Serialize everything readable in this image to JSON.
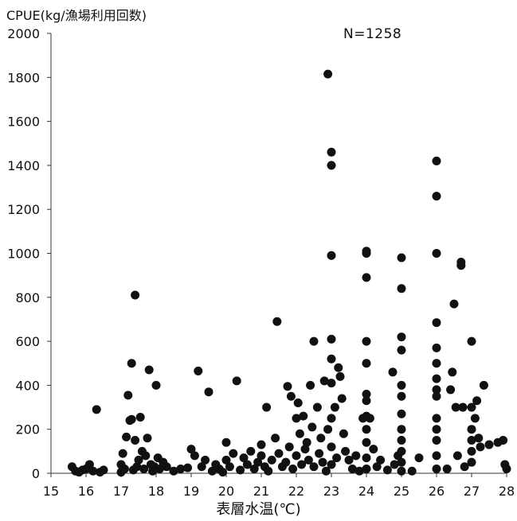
{
  "chart_data": {
    "type": "scatter",
    "title": "",
    "ylabel": "CPUE(kg/漁場利用回数)",
    "xlabel": "表層水温(℃)",
    "annotation": "N=1258",
    "xlim": [
      15,
      28
    ],
    "ylim": [
      0,
      2000
    ],
    "xticks": [
      "15",
      "16",
      "17",
      "18",
      "19",
      "20",
      "21",
      "22",
      "23",
      "24",
      "25",
      "26",
      "27",
      "28"
    ],
    "yticks": [
      "0",
      "200",
      "400",
      "600",
      "800",
      "1000",
      "1200",
      "1400",
      "1600",
      "1800",
      "2000"
    ],
    "grid": false,
    "marker_color": "#111111",
    "series": [
      {
        "points": [
          [
            15.6,
            30
          ],
          [
            15.7,
            10
          ],
          [
            15.8,
            5
          ],
          [
            15.9,
            15
          ],
          [
            16.0,
            20
          ],
          [
            16.1,
            40
          ],
          [
            16.2,
            10
          ],
          [
            16.3,
            290
          ],
          [
            16.4,
            5
          ],
          [
            16.5,
            15
          ],
          [
            17.0,
            5
          ],
          [
            17.0,
            40
          ],
          [
            17.05,
            90
          ],
          [
            17.1,
            20
          ],
          [
            17.15,
            165
          ],
          [
            17.2,
            355
          ],
          [
            17.25,
            240
          ],
          [
            17.3,
            500
          ],
          [
            17.3,
            245
          ],
          [
            17.35,
            15
          ],
          [
            17.4,
            810
          ],
          [
            17.4,
            150
          ],
          [
            17.45,
            30
          ],
          [
            17.5,
            60
          ],
          [
            17.55,
            255
          ],
          [
            17.6,
            100
          ],
          [
            17.65,
            20
          ],
          [
            17.7,
            80
          ],
          [
            17.75,
            160
          ],
          [
            17.8,
            470
          ],
          [
            17.85,
            40
          ],
          [
            17.9,
            10
          ],
          [
            17.95,
            30
          ],
          [
            18.0,
            400
          ],
          [
            18.05,
            70
          ],
          [
            18.1,
            20
          ],
          [
            18.2,
            50
          ],
          [
            18.3,
            30
          ],
          [
            18.5,
            10
          ],
          [
            18.7,
            20
          ],
          [
            18.9,
            25
          ],
          [
            19.0,
            110
          ],
          [
            19.1,
            80
          ],
          [
            19.2,
            465
          ],
          [
            19.3,
            30
          ],
          [
            19.4,
            60
          ],
          [
            19.5,
            370
          ],
          [
            19.6,
            10
          ],
          [
            19.7,
            40
          ],
          [
            19.8,
            20
          ],
          [
            19.9,
            5
          ],
          [
            20.0,
            140
          ],
          [
            20.0,
            60
          ],
          [
            20.1,
            30
          ],
          [
            20.2,
            90
          ],
          [
            20.3,
            420
          ],
          [
            20.4,
            15
          ],
          [
            20.5,
            70
          ],
          [
            20.6,
            40
          ],
          [
            20.7,
            100
          ],
          [
            20.8,
            20
          ],
          [
            20.9,
            50
          ],
          [
            21.0,
            80
          ],
          [
            21.0,
            130
          ],
          [
            21.1,
            30
          ],
          [
            21.15,
            300
          ],
          [
            21.2,
            10
          ],
          [
            21.3,
            60
          ],
          [
            21.4,
            160
          ],
          [
            21.45,
            690
          ],
          [
            21.5,
            90
          ],
          [
            21.6,
            30
          ],
          [
            21.7,
            50
          ],
          [
            21.75,
            395
          ],
          [
            21.8,
            120
          ],
          [
            21.85,
            350
          ],
          [
            21.9,
            20
          ],
          [
            22.0,
            250
          ],
          [
            22.0,
            80
          ],
          [
            22.05,
            320
          ],
          [
            22.1,
            180
          ],
          [
            22.15,
            40
          ],
          [
            22.2,
            260
          ],
          [
            22.25,
            110
          ],
          [
            22.3,
            140
          ],
          [
            22.35,
            60
          ],
          [
            22.4,
            400
          ],
          [
            22.45,
            210
          ],
          [
            22.5,
            600
          ],
          [
            22.5,
            30
          ],
          [
            22.6,
            300
          ],
          [
            22.65,
            90
          ],
          [
            22.7,
            160
          ],
          [
            22.75,
            50
          ],
          [
            22.8,
            420
          ],
          [
            22.85,
            10
          ],
          [
            22.9,
            200
          ],
          [
            22.9,
            1815
          ],
          [
            23.0,
            1460
          ],
          [
            23.0,
            1400
          ],
          [
            23.0,
            990
          ],
          [
            23.0,
            610
          ],
          [
            23.0,
            520
          ],
          [
            23.0,
            410
          ],
          [
            23.0,
            250
          ],
          [
            23.0,
            120
          ],
          [
            23.0,
            40
          ],
          [
            23.1,
            300
          ],
          [
            23.15,
            70
          ],
          [
            23.2,
            480
          ],
          [
            23.25,
            440
          ],
          [
            23.3,
            340
          ],
          [
            23.35,
            180
          ],
          [
            23.4,
            100
          ],
          [
            23.5,
            60
          ],
          [
            23.6,
            20
          ],
          [
            23.7,
            80
          ],
          [
            23.8,
            10
          ],
          [
            23.9,
            250
          ],
          [
            24.0,
            1010
          ],
          [
            24.0,
            1000
          ],
          [
            24.0,
            890
          ],
          [
            24.0,
            600
          ],
          [
            24.0,
            500
          ],
          [
            24.0,
            360
          ],
          [
            24.0,
            330
          ],
          [
            24.0,
            260
          ],
          [
            24.0,
            200
          ],
          [
            24.0,
            140
          ],
          [
            24.0,
            70
          ],
          [
            24.0,
            20
          ],
          [
            24.1,
            250
          ],
          [
            24.2,
            110
          ],
          [
            24.3,
            30
          ],
          [
            24.4,
            60
          ],
          [
            24.6,
            15
          ],
          [
            24.75,
            460
          ],
          [
            24.8,
            40
          ],
          [
            24.9,
            80
          ],
          [
            25.0,
            980
          ],
          [
            25.0,
            840
          ],
          [
            25.0,
            620
          ],
          [
            25.0,
            560
          ],
          [
            25.0,
            400
          ],
          [
            25.0,
            350
          ],
          [
            25.0,
            270
          ],
          [
            25.0,
            200
          ],
          [
            25.0,
            150
          ],
          [
            25.0,
            100
          ],
          [
            25.0,
            50
          ],
          [
            25.0,
            10
          ],
          [
            25.3,
            10
          ],
          [
            25.5,
            70
          ],
          [
            26.0,
            1420
          ],
          [
            26.0,
            1260
          ],
          [
            26.0,
            1000
          ],
          [
            26.0,
            685
          ],
          [
            26.0,
            570
          ],
          [
            26.0,
            500
          ],
          [
            26.0,
            430
          ],
          [
            26.0,
            380
          ],
          [
            26.0,
            350
          ],
          [
            26.0,
            250
          ],
          [
            26.0,
            200
          ],
          [
            26.0,
            150
          ],
          [
            26.0,
            80
          ],
          [
            26.0,
            20
          ],
          [
            26.3,
            20
          ],
          [
            26.4,
            380
          ],
          [
            26.45,
            460
          ],
          [
            26.5,
            770
          ],
          [
            26.55,
            300
          ],
          [
            26.6,
            80
          ],
          [
            26.7,
            960
          ],
          [
            26.7,
            945
          ],
          [
            26.75,
            300
          ],
          [
            26.8,
            30
          ],
          [
            27.0,
            600
          ],
          [
            27.0,
            300
          ],
          [
            27.0,
            200
          ],
          [
            27.0,
            150
          ],
          [
            27.0,
            100
          ],
          [
            27.0,
            50
          ],
          [
            27.1,
            250
          ],
          [
            27.15,
            330
          ],
          [
            27.2,
            160
          ],
          [
            27.25,
            120
          ],
          [
            27.35,
            400
          ],
          [
            27.5,
            130
          ],
          [
            27.75,
            140
          ],
          [
            27.9,
            150
          ],
          [
            27.95,
            40
          ],
          [
            28.0,
            20
          ]
        ]
      }
    ]
  }
}
